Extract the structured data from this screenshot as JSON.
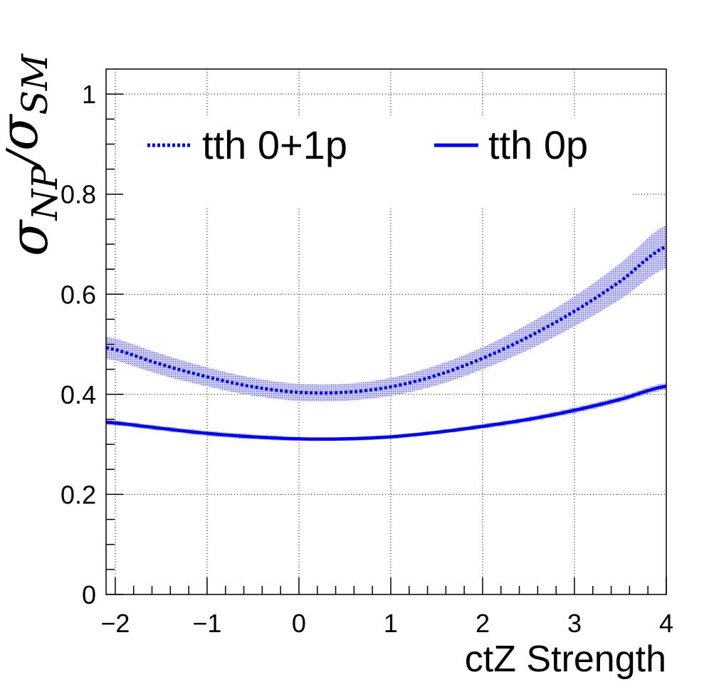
{
  "chart_data": {
    "type": "line",
    "title": "",
    "xlabel": "ctZ Strength",
    "ylabel": {
      "sigma": "σ",
      "sub1": "NP",
      "slash": "/",
      "sub2": "SM"
    },
    "xlim": [
      -2.1,
      4
    ],
    "ylim": [
      0,
      1.05
    ],
    "xticks": [
      -2,
      -1,
      0,
      1,
      2,
      3,
      4
    ],
    "xtick_labels": [
      "−2",
      "−1",
      "0",
      "1",
      "2",
      "3",
      "4"
    ],
    "yticks": [
      0,
      0.2,
      0.4,
      0.6,
      0.8,
      1
    ],
    "ytick_labels": [
      "0",
      "0.2",
      "0.4",
      "0.6",
      "0.8",
      "1"
    ],
    "grid": true,
    "legend_position": "top",
    "series": [
      {
        "name": "tth 0+1p",
        "style": "dotted",
        "color": "#0000ff",
        "band_color": "#8888ee",
        "x": [
          -2.1,
          -1.5,
          -1.0,
          -0.5,
          0.0,
          0.5,
          1.0,
          1.5,
          2.0,
          2.5,
          3.0,
          3.5,
          4.0
        ],
        "y": [
          0.493,
          0.46,
          0.435,
          0.415,
          0.404,
          0.404,
          0.415,
          0.438,
          0.472,
          0.515,
          0.566,
          0.626,
          0.695
        ],
        "band": [
          0.022,
          0.021,
          0.019,
          0.018,
          0.017,
          0.017,
          0.018,
          0.02,
          0.022,
          0.026,
          0.03,
          0.036,
          0.043
        ]
      },
      {
        "name": "tth 0p",
        "style": "solid",
        "color": "#0000ff",
        "band_color": "#8888ee",
        "x": [
          -2.1,
          -1.5,
          -1.0,
          -0.5,
          0.0,
          0.5,
          1.0,
          1.5,
          2.0,
          2.5,
          3.0,
          3.5,
          4.0
        ],
        "y": [
          0.344,
          0.332,
          0.322,
          0.315,
          0.311,
          0.311,
          0.315,
          0.324,
          0.336,
          0.35,
          0.368,
          0.39,
          0.416
        ],
        "band": [
          0.005,
          0.005,
          0.005,
          0.005,
          0.004,
          0.004,
          0.004,
          0.004,
          0.005,
          0.005,
          0.006,
          0.006,
          0.007
        ]
      }
    ]
  }
}
